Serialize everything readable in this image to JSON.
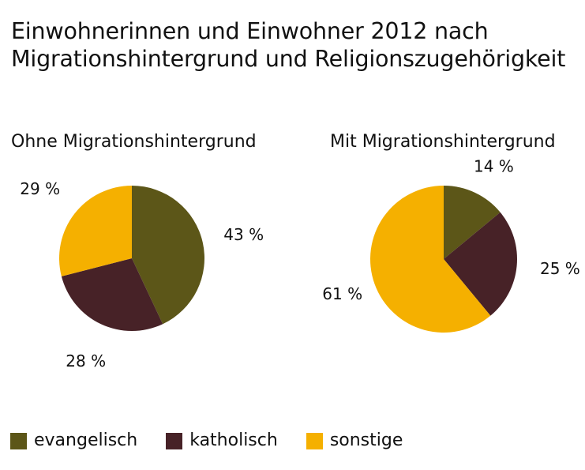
{
  "chart_data": {
    "type": "pie",
    "title_lines": [
      "Einwohnerinnen und Einwohner 2012 nach",
      "Migrationshintergrund und Religionszugehörigkeit"
    ],
    "categories": [
      "evangelisch",
      "katholisch",
      "sonstige"
    ],
    "colors": {
      "evangelisch": "#5c5618",
      "katholisch": "#472227",
      "sonstige": "#f5b000"
    },
    "pies": [
      {
        "title": "Ohne Migrationshintergrund",
        "values": [
          43,
          28,
          29
        ],
        "labels": [
          "43 %",
          "28 %",
          "29 %"
        ]
      },
      {
        "title": "Mit Migrationshintergrund",
        "values": [
          14,
          25,
          61
        ],
        "labels": [
          "14 %",
          "25 %",
          "61 %"
        ]
      }
    ],
    "legend": "bottom-left"
  }
}
